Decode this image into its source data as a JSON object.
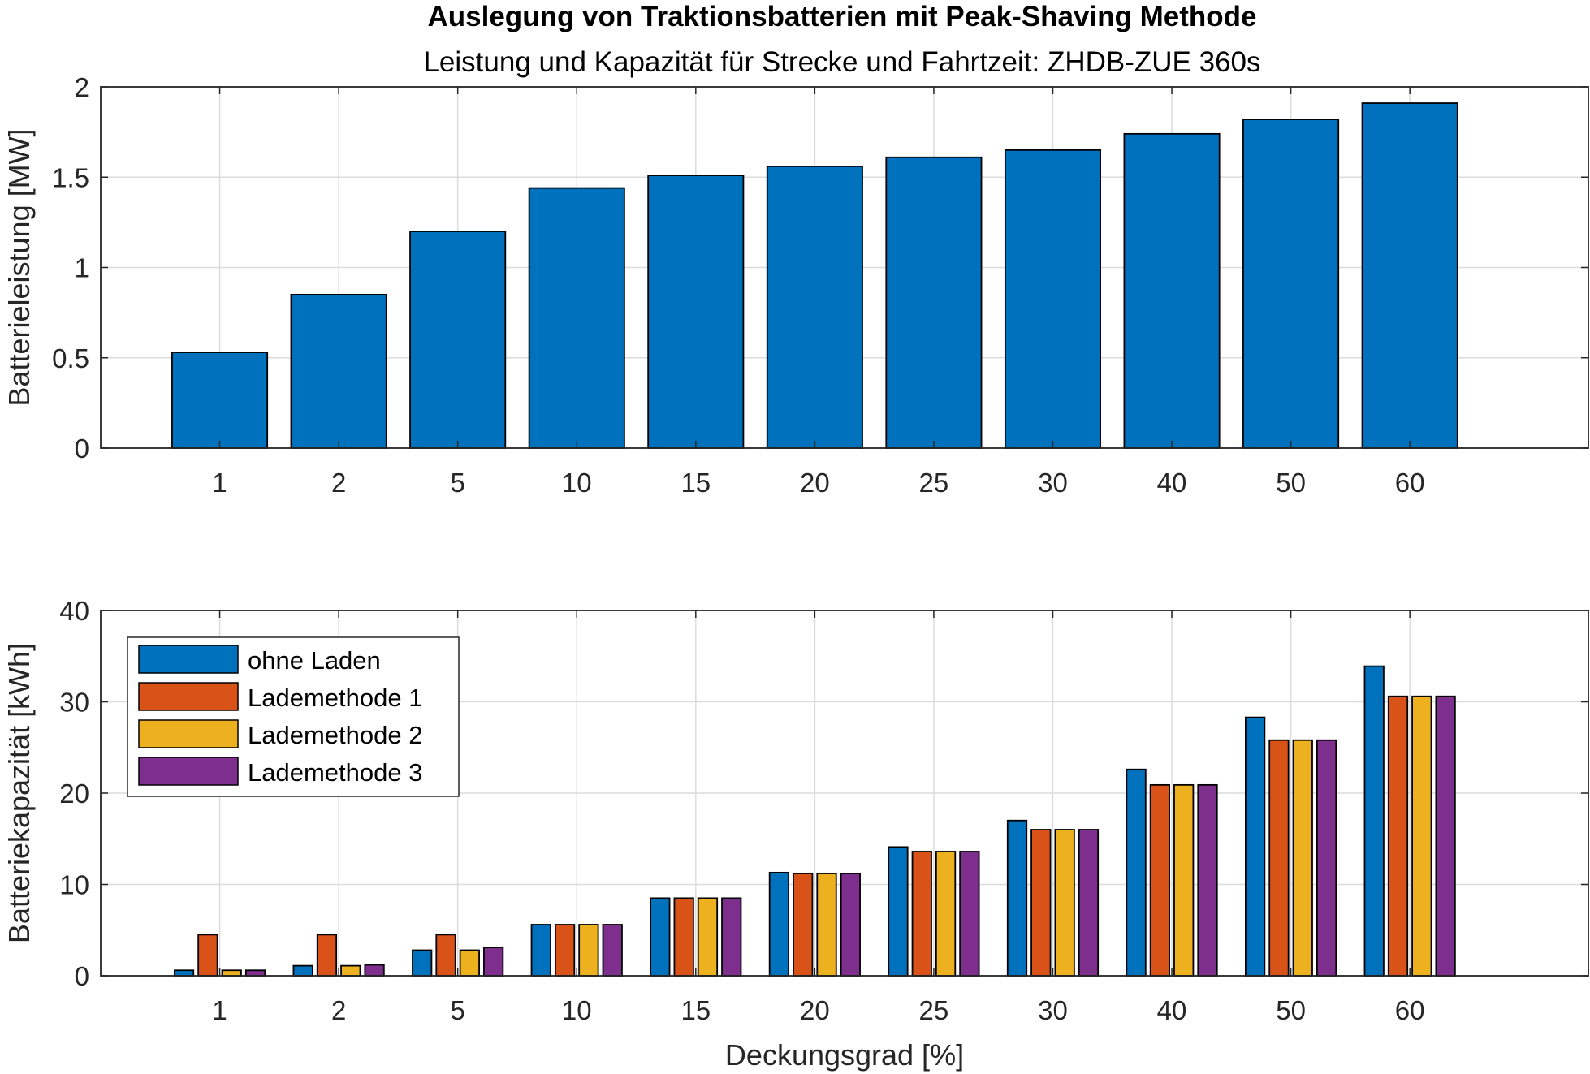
{
  "figure": {
    "title": "Auslegung von Traktionsbatterien mit Peak-Shaving Methode",
    "subtitle": "Leistung und Kapazität für Strecke und Fahrtzeit: ZHDB-ZUE 360s"
  },
  "chart_data": [
    {
      "type": "bar",
      "categories": [
        "1",
        "2",
        "5",
        "10",
        "15",
        "20",
        "25",
        "30",
        "40",
        "50",
        "60"
      ],
      "values": [
        0.53,
        0.85,
        1.2,
        1.44,
        1.51,
        1.56,
        1.61,
        1.65,
        1.74,
        1.82,
        1.91
      ],
      "color": "#0072BD",
      "xlabel": "",
      "ylabel": "Batterieleistung [MW]",
      "ylim": [
        0,
        2
      ],
      "yticks": [
        0,
        0.5,
        1,
        1.5,
        2
      ],
      "ytick_labels": [
        "0",
        "0.5",
        "1",
        "1.5",
        "2"
      ],
      "grid": true,
      "legend": null
    },
    {
      "type": "bar",
      "categories": [
        "1",
        "2",
        "5",
        "10",
        "15",
        "20",
        "25",
        "30",
        "40",
        "50",
        "60"
      ],
      "series": [
        {
          "name": "ohne Laden",
          "color": "#0072BD",
          "values": [
            0.6,
            1.1,
            2.8,
            5.6,
            8.5,
            11.3,
            14.1,
            17.0,
            22.6,
            28.3,
            33.9
          ]
        },
        {
          "name": "Lademethode 1",
          "color": "#D95319",
          "values": [
            4.5,
            4.5,
            4.5,
            5.6,
            8.5,
            11.2,
            13.6,
            16.0,
            20.9,
            25.8,
            30.6
          ]
        },
        {
          "name": "Lademethode 2",
          "color": "#EDB120",
          "values": [
            0.6,
            1.1,
            2.8,
            5.6,
            8.5,
            11.2,
            13.6,
            16.0,
            20.9,
            25.8,
            30.6
          ]
        },
        {
          "name": "Lademethode 3",
          "color": "#7E2F8E",
          "values": [
            0.6,
            1.2,
            3.1,
            5.6,
            8.5,
            11.2,
            13.6,
            16.0,
            20.9,
            25.8,
            30.6
          ]
        }
      ],
      "xlabel": "Deckungsgrad [%]",
      "ylabel": "Batteriekapazität [kWh]",
      "ylim": [
        0,
        40
      ],
      "yticks": [
        0,
        10,
        20,
        30,
        40
      ],
      "ytick_labels": [
        "0",
        "10",
        "20",
        "30",
        "40"
      ],
      "grid": true,
      "legend": "top-left"
    }
  ]
}
